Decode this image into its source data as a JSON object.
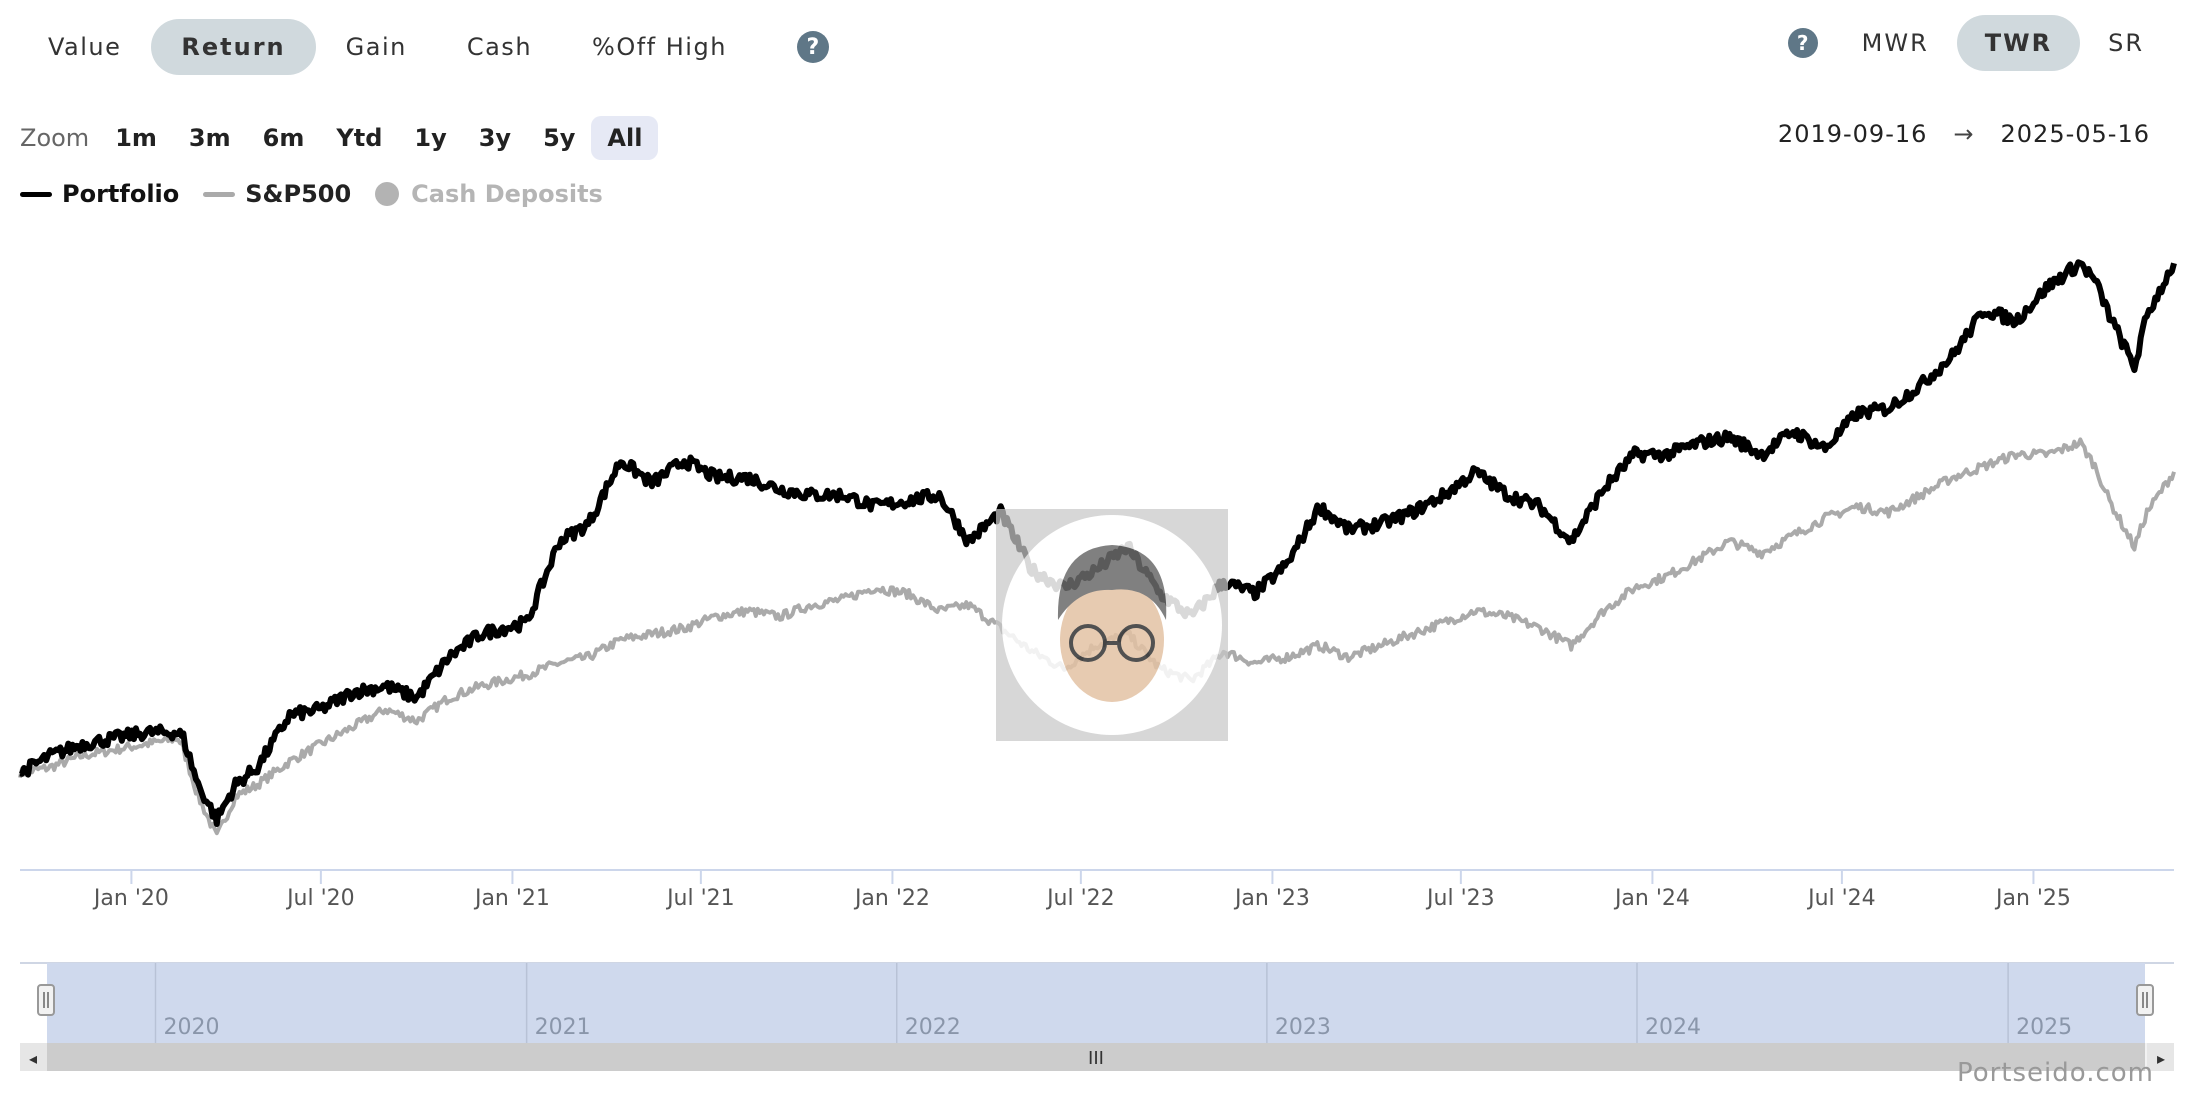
{
  "metric_tabs": [
    {
      "label": "Value",
      "active": false
    },
    {
      "label": "Return",
      "active": true
    },
    {
      "label": "Gain",
      "active": false
    },
    {
      "label": "Cash",
      "active": false
    },
    {
      "label": "%Off High",
      "active": false
    }
  ],
  "help_symbol": "?",
  "method_tabs": [
    {
      "label": "MWR",
      "active": false
    },
    {
      "label": "TWR",
      "active": true
    },
    {
      "label": "SR",
      "active": false
    }
  ],
  "zoom": {
    "label": "Zoom",
    "buttons": [
      {
        "label": "1m",
        "active": false
      },
      {
        "label": "3m",
        "active": false
      },
      {
        "label": "6m",
        "active": false
      },
      {
        "label": "Ytd",
        "active": false
      },
      {
        "label": "1y",
        "active": false
      },
      {
        "label": "3y",
        "active": false
      },
      {
        "label": "5y",
        "active": false
      },
      {
        "label": "All",
        "active": true
      }
    ]
  },
  "range": {
    "from": "2019-09-16",
    "arrow": "→",
    "to": "2025-05-16"
  },
  "legend": [
    {
      "label": "Portfolio",
      "color": "#000000",
      "marker": "line",
      "enabled": true
    },
    {
      "label": "S&P500",
      "color": "#aaaaaa",
      "marker": "line",
      "enabled": true
    },
    {
      "label": "Cash Deposits",
      "color": "#b3b3b3",
      "marker": "dot",
      "enabled": false
    }
  ],
  "chart_data": {
    "type": "line",
    "x_range": [
      "2019-09-16",
      "2025-05-16"
    ],
    "x_tick_labels": [
      "Jan '20",
      "Jul '20",
      "Jan '21",
      "Jul '21",
      "Jan '22",
      "Jul '22",
      "Jan '23",
      "Jul '23",
      "Jan '24",
      "Jul '24",
      "Jan '25"
    ],
    "y_axis_labels_visible": false,
    "series": [
      {
        "name": "Portfolio",
        "color": "#000000",
        "points": [
          [
            "2019-09-16",
            0
          ],
          [
            "2019-10-15",
            3
          ],
          [
            "2019-11-15",
            5
          ],
          [
            "2019-12-15",
            6
          ],
          [
            "2020-01-15",
            7
          ],
          [
            "2020-02-15",
            7
          ],
          [
            "2020-02-20",
            6
          ],
          [
            "2020-03-05",
            -2
          ],
          [
            "2020-03-23",
            -8
          ],
          [
            "2020-04-10",
            -2
          ],
          [
            "2020-05-01",
            1
          ],
          [
            "2020-06-01",
            10
          ],
          [
            "2020-07-01",
            11
          ],
          [
            "2020-08-01",
            14
          ],
          [
            "2020-09-01",
            15
          ],
          [
            "2020-10-01",
            13
          ],
          [
            "2020-11-01",
            20
          ],
          [
            "2020-12-01",
            24
          ],
          [
            "2021-01-15",
            26
          ],
          [
            "2021-02-15",
            40
          ],
          [
            "2021-03-15",
            43
          ],
          [
            "2021-04-15",
            54
          ],
          [
            "2021-05-15",
            50
          ],
          [
            "2021-06-15",
            54
          ],
          [
            "2021-07-15",
            51
          ],
          [
            "2021-08-15",
            51
          ],
          [
            "2021-09-15",
            49
          ],
          [
            "2021-10-15",
            48
          ],
          [
            "2021-11-15",
            48
          ],
          [
            "2021-12-15",
            46
          ],
          [
            "2022-01-15",
            47
          ],
          [
            "2022-02-15",
            48
          ],
          [
            "2022-03-15",
            40
          ],
          [
            "2022-04-15",
            45
          ],
          [
            "2022-05-15",
            35
          ],
          [
            "2022-06-15",
            32
          ],
          [
            "2022-07-15",
            35
          ],
          [
            "2022-08-15",
            39
          ],
          [
            "2022-09-15",
            31
          ],
          [
            "2022-10-15",
            27
          ],
          [
            "2022-11-15",
            33
          ],
          [
            "2022-12-15",
            31
          ],
          [
            "2023-01-15",
            36
          ],
          [
            "2023-02-15",
            46
          ],
          [
            "2023-03-15",
            42
          ],
          [
            "2023-04-15",
            43
          ],
          [
            "2023-05-15",
            45
          ],
          [
            "2023-06-15",
            48
          ],
          [
            "2023-07-15",
            52
          ],
          [
            "2023-08-15",
            48
          ],
          [
            "2023-09-15",
            46
          ],
          [
            "2023-10-15",
            40
          ],
          [
            "2023-11-15",
            49
          ],
          [
            "2023-12-15",
            55
          ],
          [
            "2024-01-15",
            55
          ],
          [
            "2024-02-15",
            57
          ],
          [
            "2024-03-15",
            58
          ],
          [
            "2024-04-15",
            55
          ],
          [
            "2024-05-15",
            59
          ],
          [
            "2024-06-15",
            56
          ],
          [
            "2024-07-15",
            62
          ],
          [
            "2024-08-15",
            63
          ],
          [
            "2024-09-15",
            67
          ],
          [
            "2024-10-15",
            72
          ],
          [
            "2024-11-15",
            80
          ],
          [
            "2024-12-15",
            78
          ],
          [
            "2025-01-15",
            84
          ],
          [
            "2025-02-15",
            88
          ],
          [
            "2025-03-01",
            85
          ],
          [
            "2025-03-15",
            79
          ],
          [
            "2025-04-08",
            70
          ],
          [
            "2025-04-20",
            79
          ],
          [
            "2025-05-16",
            88
          ]
        ]
      },
      {
        "name": "S&P500",
        "color": "#aaaaaa",
        "points": [
          [
            "2019-09-16",
            0
          ],
          [
            "2019-10-15",
            1
          ],
          [
            "2019-11-15",
            3
          ],
          [
            "2019-12-15",
            4
          ],
          [
            "2020-01-15",
            5
          ],
          [
            "2020-02-15",
            6
          ],
          [
            "2020-02-20",
            4
          ],
          [
            "2020-03-05",
            -4
          ],
          [
            "2020-03-23",
            -11
          ],
          [
            "2020-04-10",
            -4
          ],
          [
            "2020-05-01",
            -2
          ],
          [
            "2020-06-01",
            2
          ],
          [
            "2020-07-01",
            5
          ],
          [
            "2020-08-01",
            8
          ],
          [
            "2020-09-01",
            11
          ],
          [
            "2020-10-01",
            9
          ],
          [
            "2020-11-01",
            13
          ],
          [
            "2020-12-01",
            15
          ],
          [
            "2021-01-15",
            17
          ],
          [
            "2021-02-15",
            19
          ],
          [
            "2021-03-15",
            20
          ],
          [
            "2021-04-15",
            23
          ],
          [
            "2021-05-15",
            24
          ],
          [
            "2021-06-15",
            25
          ],
          [
            "2021-07-15",
            27
          ],
          [
            "2021-08-15",
            28
          ],
          [
            "2021-09-15",
            27
          ],
          [
            "2021-10-15",
            29
          ],
          [
            "2021-11-15",
            30
          ],
          [
            "2021-12-15",
            32
          ],
          [
            "2022-01-15",
            31
          ],
          [
            "2022-02-15",
            28
          ],
          [
            "2022-03-15",
            29
          ],
          [
            "2022-04-15",
            25
          ],
          [
            "2022-05-15",
            21
          ],
          [
            "2022-06-15",
            18
          ],
          [
            "2022-07-15",
            22
          ],
          [
            "2022-08-15",
            24
          ],
          [
            "2022-09-15",
            18
          ],
          [
            "2022-10-15",
            16
          ],
          [
            "2022-11-15",
            21
          ],
          [
            "2022-12-15",
            19
          ],
          [
            "2023-01-15",
            20
          ],
          [
            "2023-02-15",
            22
          ],
          [
            "2023-03-15",
            20
          ],
          [
            "2023-04-15",
            22
          ],
          [
            "2023-05-15",
            24
          ],
          [
            "2023-06-15",
            26
          ],
          [
            "2023-07-15",
            28
          ],
          [
            "2023-08-15",
            27
          ],
          [
            "2023-09-15",
            25
          ],
          [
            "2023-10-15",
            22
          ],
          [
            "2023-11-15",
            28
          ],
          [
            "2023-12-15",
            32
          ],
          [
            "2024-01-15",
            34
          ],
          [
            "2024-02-15",
            37
          ],
          [
            "2024-03-15",
            40
          ],
          [
            "2024-04-15",
            38
          ],
          [
            "2024-05-15",
            41
          ],
          [
            "2024-06-15",
            44
          ],
          [
            "2024-07-15",
            46
          ],
          [
            "2024-08-15",
            45
          ],
          [
            "2024-09-15",
            48
          ],
          [
            "2024-10-15",
            51
          ],
          [
            "2024-11-15",
            53
          ],
          [
            "2024-12-15",
            55
          ],
          [
            "2025-01-15",
            55
          ],
          [
            "2025-02-15",
            57
          ],
          [
            "2025-03-01",
            53
          ],
          [
            "2025-03-15",
            47
          ],
          [
            "2025-04-08",
            39
          ],
          [
            "2025-04-20",
            45
          ],
          [
            "2025-05-16",
            52
          ]
        ]
      }
    ]
  },
  "navigator": {
    "year_labels": [
      "2020",
      "2021",
      "2022",
      "2023",
      "2024",
      "2025"
    ],
    "scrollbar_grip": "III",
    "left_arrow": "◂",
    "right_arrow": "▸"
  },
  "watermark": "Portseido.com"
}
